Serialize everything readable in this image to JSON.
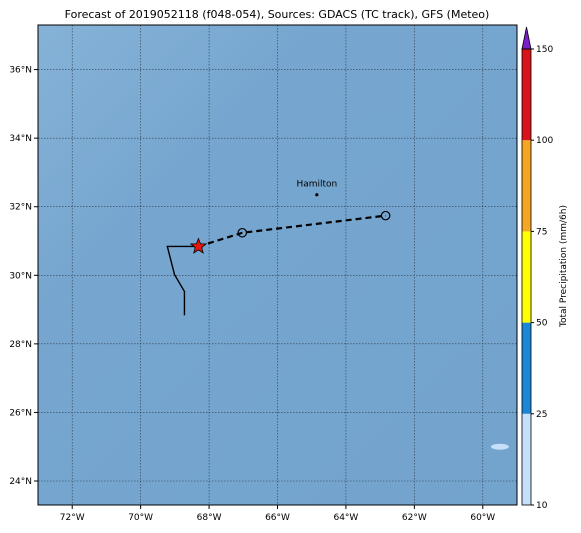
{
  "title": "Forecast of 2019052118 (f048-054), Sources: GDACS (TC track), GFS (Meteo)",
  "map": {
    "xlim": [
      -73,
      -59
    ],
    "ylim": [
      23.3,
      37.3
    ],
    "grid": true,
    "xticks": [
      {
        "value": -72,
        "label": "72°W"
      },
      {
        "value": -70,
        "label": "70°W"
      },
      {
        "value": -68,
        "label": "68°W"
      },
      {
        "value": -66,
        "label": "66°W"
      },
      {
        "value": -64,
        "label": "64°W"
      },
      {
        "value": -62,
        "label": "62°W"
      },
      {
        "value": -60,
        "label": "60°W"
      }
    ],
    "yticks": [
      {
        "value": 24,
        "label": "24°N"
      },
      {
        "value": 26,
        "label": "26°N"
      },
      {
        "value": 28,
        "label": "28°N"
      },
      {
        "value": 30,
        "label": "30°N"
      },
      {
        "value": 32,
        "label": "32°N"
      },
      {
        "value": 34,
        "label": "34°N"
      },
      {
        "value": 36,
        "label": "36°N"
      }
    ]
  },
  "track": {
    "past": {
      "lon": [
        -68.31,
        -69.22,
        -69.01,
        -68.72,
        -68.72
      ],
      "lat": [
        30.84,
        30.84,
        30.02,
        29.53,
        28.83
      ]
    },
    "forecast": {
      "lon": [
        -68.31,
        -67.03,
        -62.84
      ],
      "lat": [
        30.84,
        31.24,
        31.74
      ]
    }
  },
  "cities": [
    {
      "name": "Hamilton",
      "lon": -64.85,
      "lat": 32.35
    }
  ],
  "precip_patches": [
    {
      "lon": -59.5,
      "lat": 25.0,
      "value": 15
    }
  ],
  "colorbar": {
    "label": "Total Precipitation (mm/6h)",
    "levels": [
      10,
      25,
      50,
      75,
      100,
      150
    ],
    "colors": [
      "#c6e0fb",
      "#1c86d6",
      "#ffff00",
      "#f5a623",
      "#d7141c"
    ],
    "extend_color": "#7b1fc9"
  }
}
